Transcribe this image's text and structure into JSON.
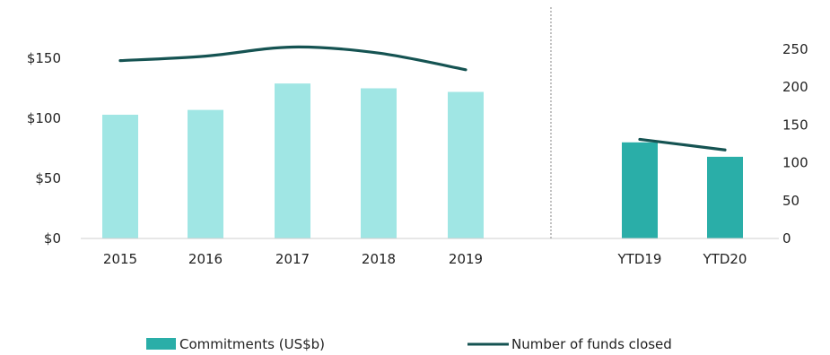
{
  "chart_data": {
    "type": "bar",
    "categories": [
      "2015",
      "2016",
      "2017",
      "2018",
      "2019",
      "YTD19",
      "YTD20"
    ],
    "series": [
      {
        "name": "Commitments (US$b)",
        "kind": "bar",
        "axis": "left",
        "values": [
          103,
          107,
          129,
          125,
          122,
          80,
          68
        ]
      },
      {
        "name": "Number of funds closed",
        "kind": "line",
        "axis": "right",
        "values": [
          235,
          241,
          253,
          245,
          223,
          131,
          117
        ]
      }
    ],
    "y_left": {
      "ylim": [
        0,
        150
      ],
      "ticks": [
        "$0",
        "$50",
        "$100",
        "$150"
      ],
      "tick_values": [
        0,
        50,
        100,
        150
      ]
    },
    "y_right": {
      "ylim": [
        0,
        250
      ],
      "ticks": [
        "0",
        "50",
        "100",
        "150",
        "200",
        "250"
      ],
      "tick_values": [
        0,
        50,
        100,
        150,
        200,
        250
      ]
    },
    "groups": [
      {
        "categories": [
          "2015",
          "2016",
          "2017",
          "2018",
          "2019"
        ],
        "bar_color": "#A0E6E4"
      },
      {
        "categories": [
          "YTD19",
          "YTD20"
        ],
        "bar_color": "#2AAEA8"
      }
    ],
    "line_color": "#155352",
    "legend_swatch_color": "#2AAEA8",
    "divider": "dotted vertical line between 2019 and YTD19",
    "legend_placement": "bottom",
    "grid": false
  }
}
